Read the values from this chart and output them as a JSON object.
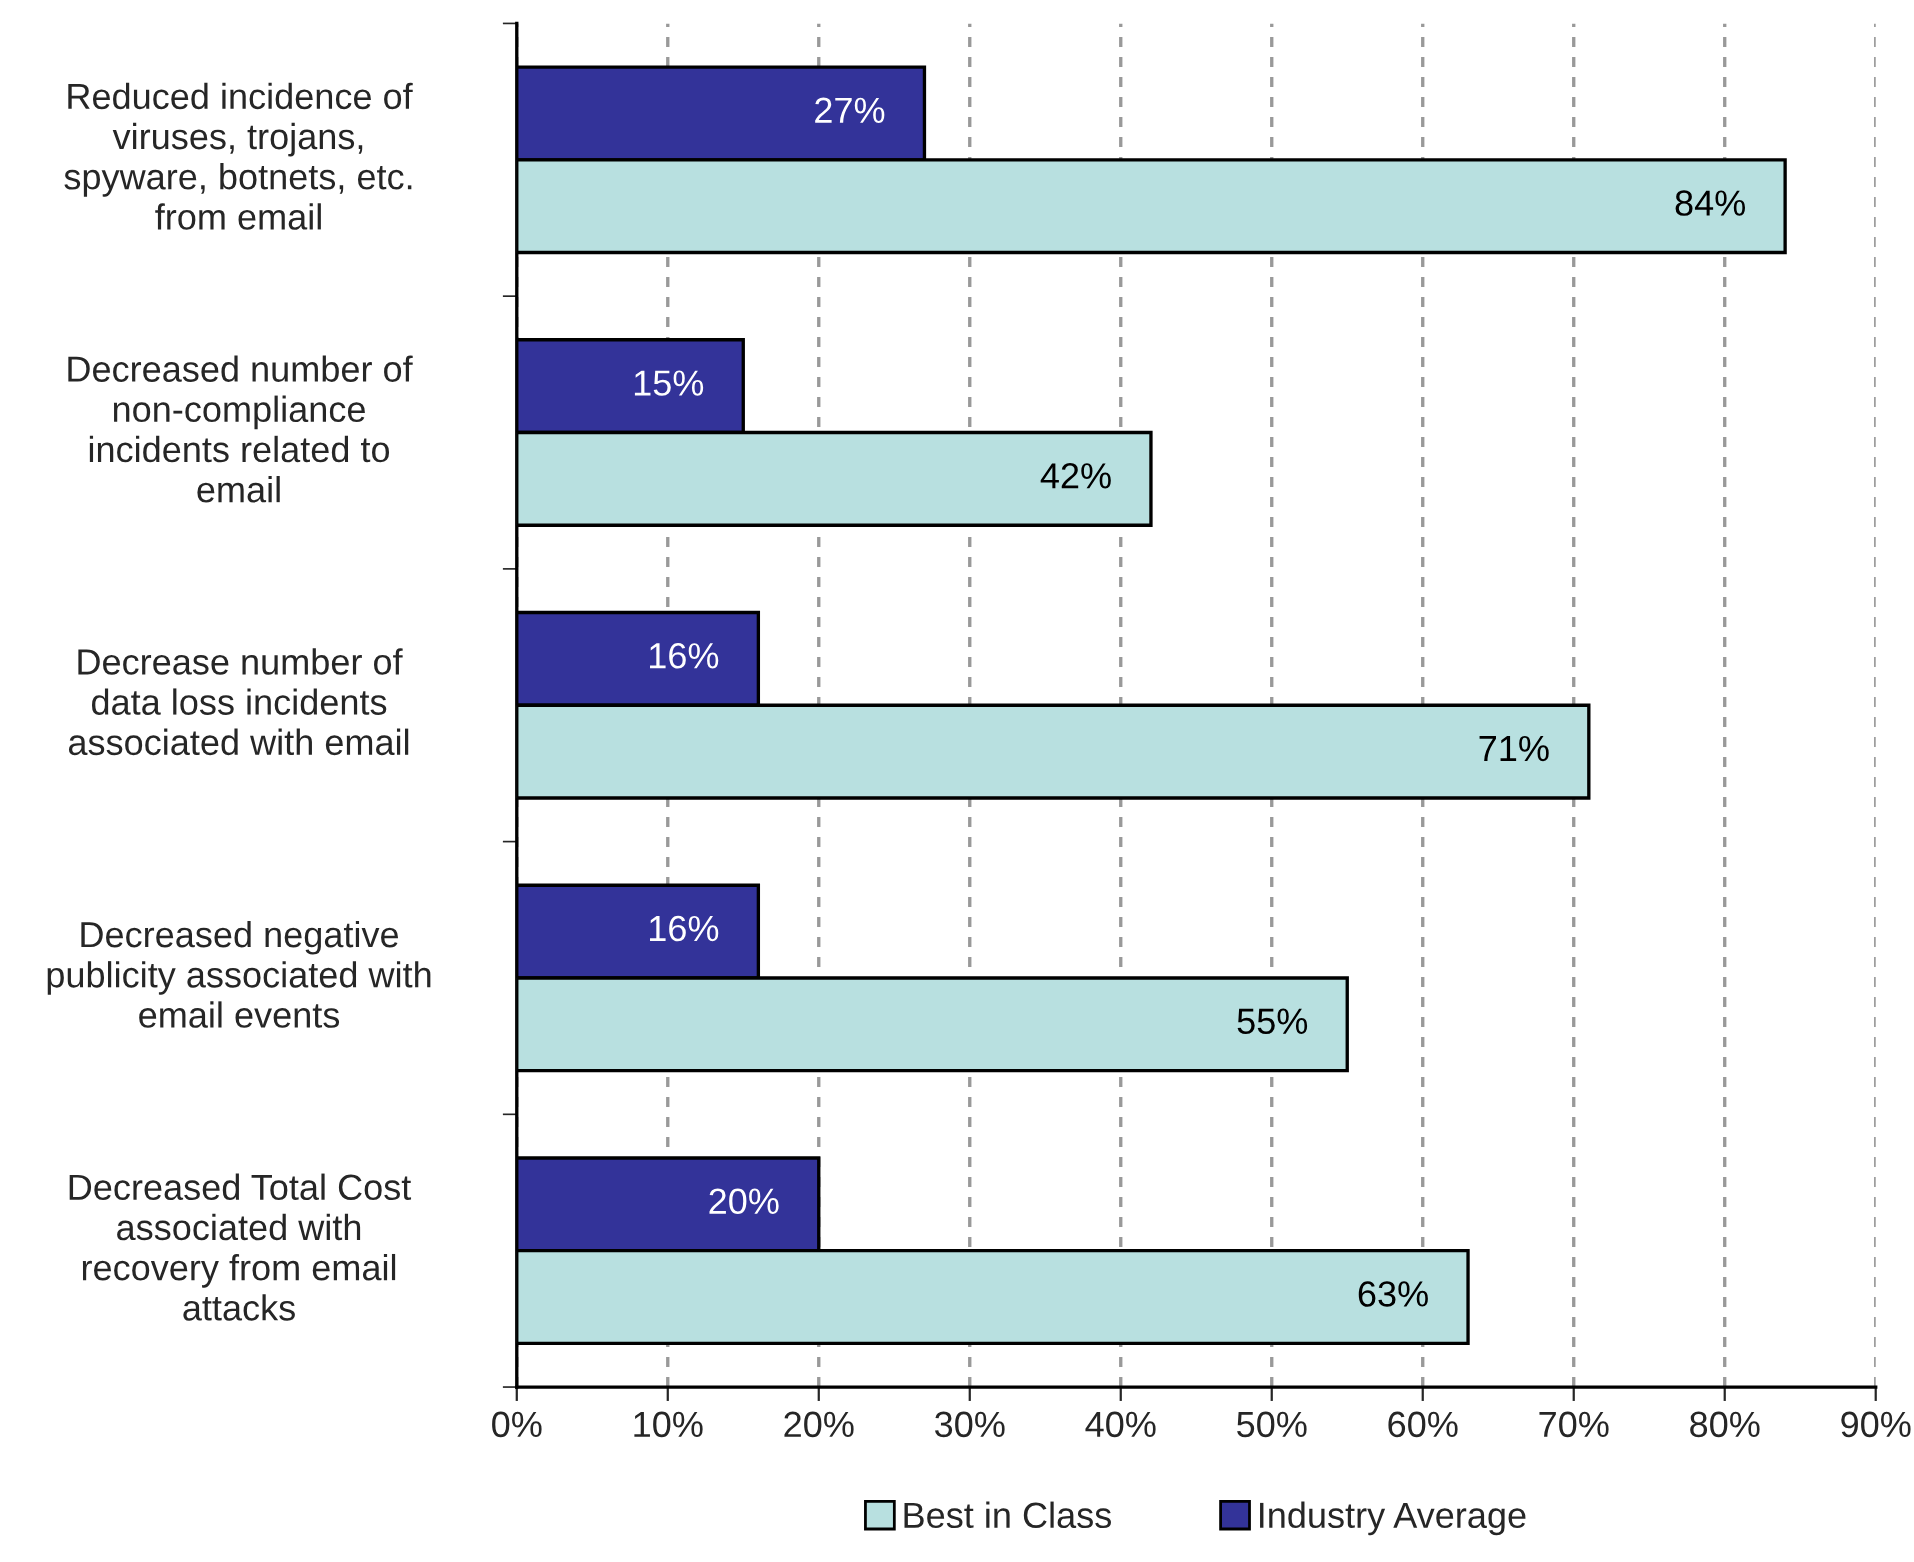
{
  "chart_data": {
    "type": "bar",
    "orientation": "horizontal",
    "categories": [
      "Reduced incidence of\nviruses, trojans,\nspyware, botnets, etc.\nfrom email",
      "Decreased number of\nnon-compliance\nincidents related to\nemail",
      "Decrease number of\ndata loss incidents\nassociated with email",
      "Decreased negative\npublicity associated with\nemail events",
      "Decreased Total Cost\nassociated with\nrecovery from email\nattacks"
    ],
    "series": [
      {
        "name": "Industry Average",
        "color": "#333399",
        "values": [
          27,
          15,
          16,
          16,
          20
        ],
        "value_labels": [
          "27%",
          "15%",
          "16%",
          "16%",
          "20%"
        ]
      },
      {
        "name": "Best in Class",
        "color": "#b8e0e0",
        "values": [
          84,
          42,
          71,
          55,
          63
        ],
        "value_labels": [
          "84%",
          "42%",
          "71%",
          "55%",
          "63%"
        ]
      }
    ],
    "xlim": [
      0,
      90
    ],
    "xticks": [
      {
        "value": 0,
        "label": "0%"
      },
      {
        "value": 10,
        "label": "10%"
      },
      {
        "value": 20,
        "label": "20%"
      },
      {
        "value": 30,
        "label": "30%"
      },
      {
        "value": 40,
        "label": "40%"
      },
      {
        "value": 50,
        "label": "50%"
      },
      {
        "value": 60,
        "label": "60%"
      },
      {
        "value": 70,
        "label": "70%"
      },
      {
        "value": 80,
        "label": "80%"
      },
      {
        "value": 90,
        "label": "90%"
      }
    ],
    "grid": "x",
    "legend": "bottom"
  }
}
